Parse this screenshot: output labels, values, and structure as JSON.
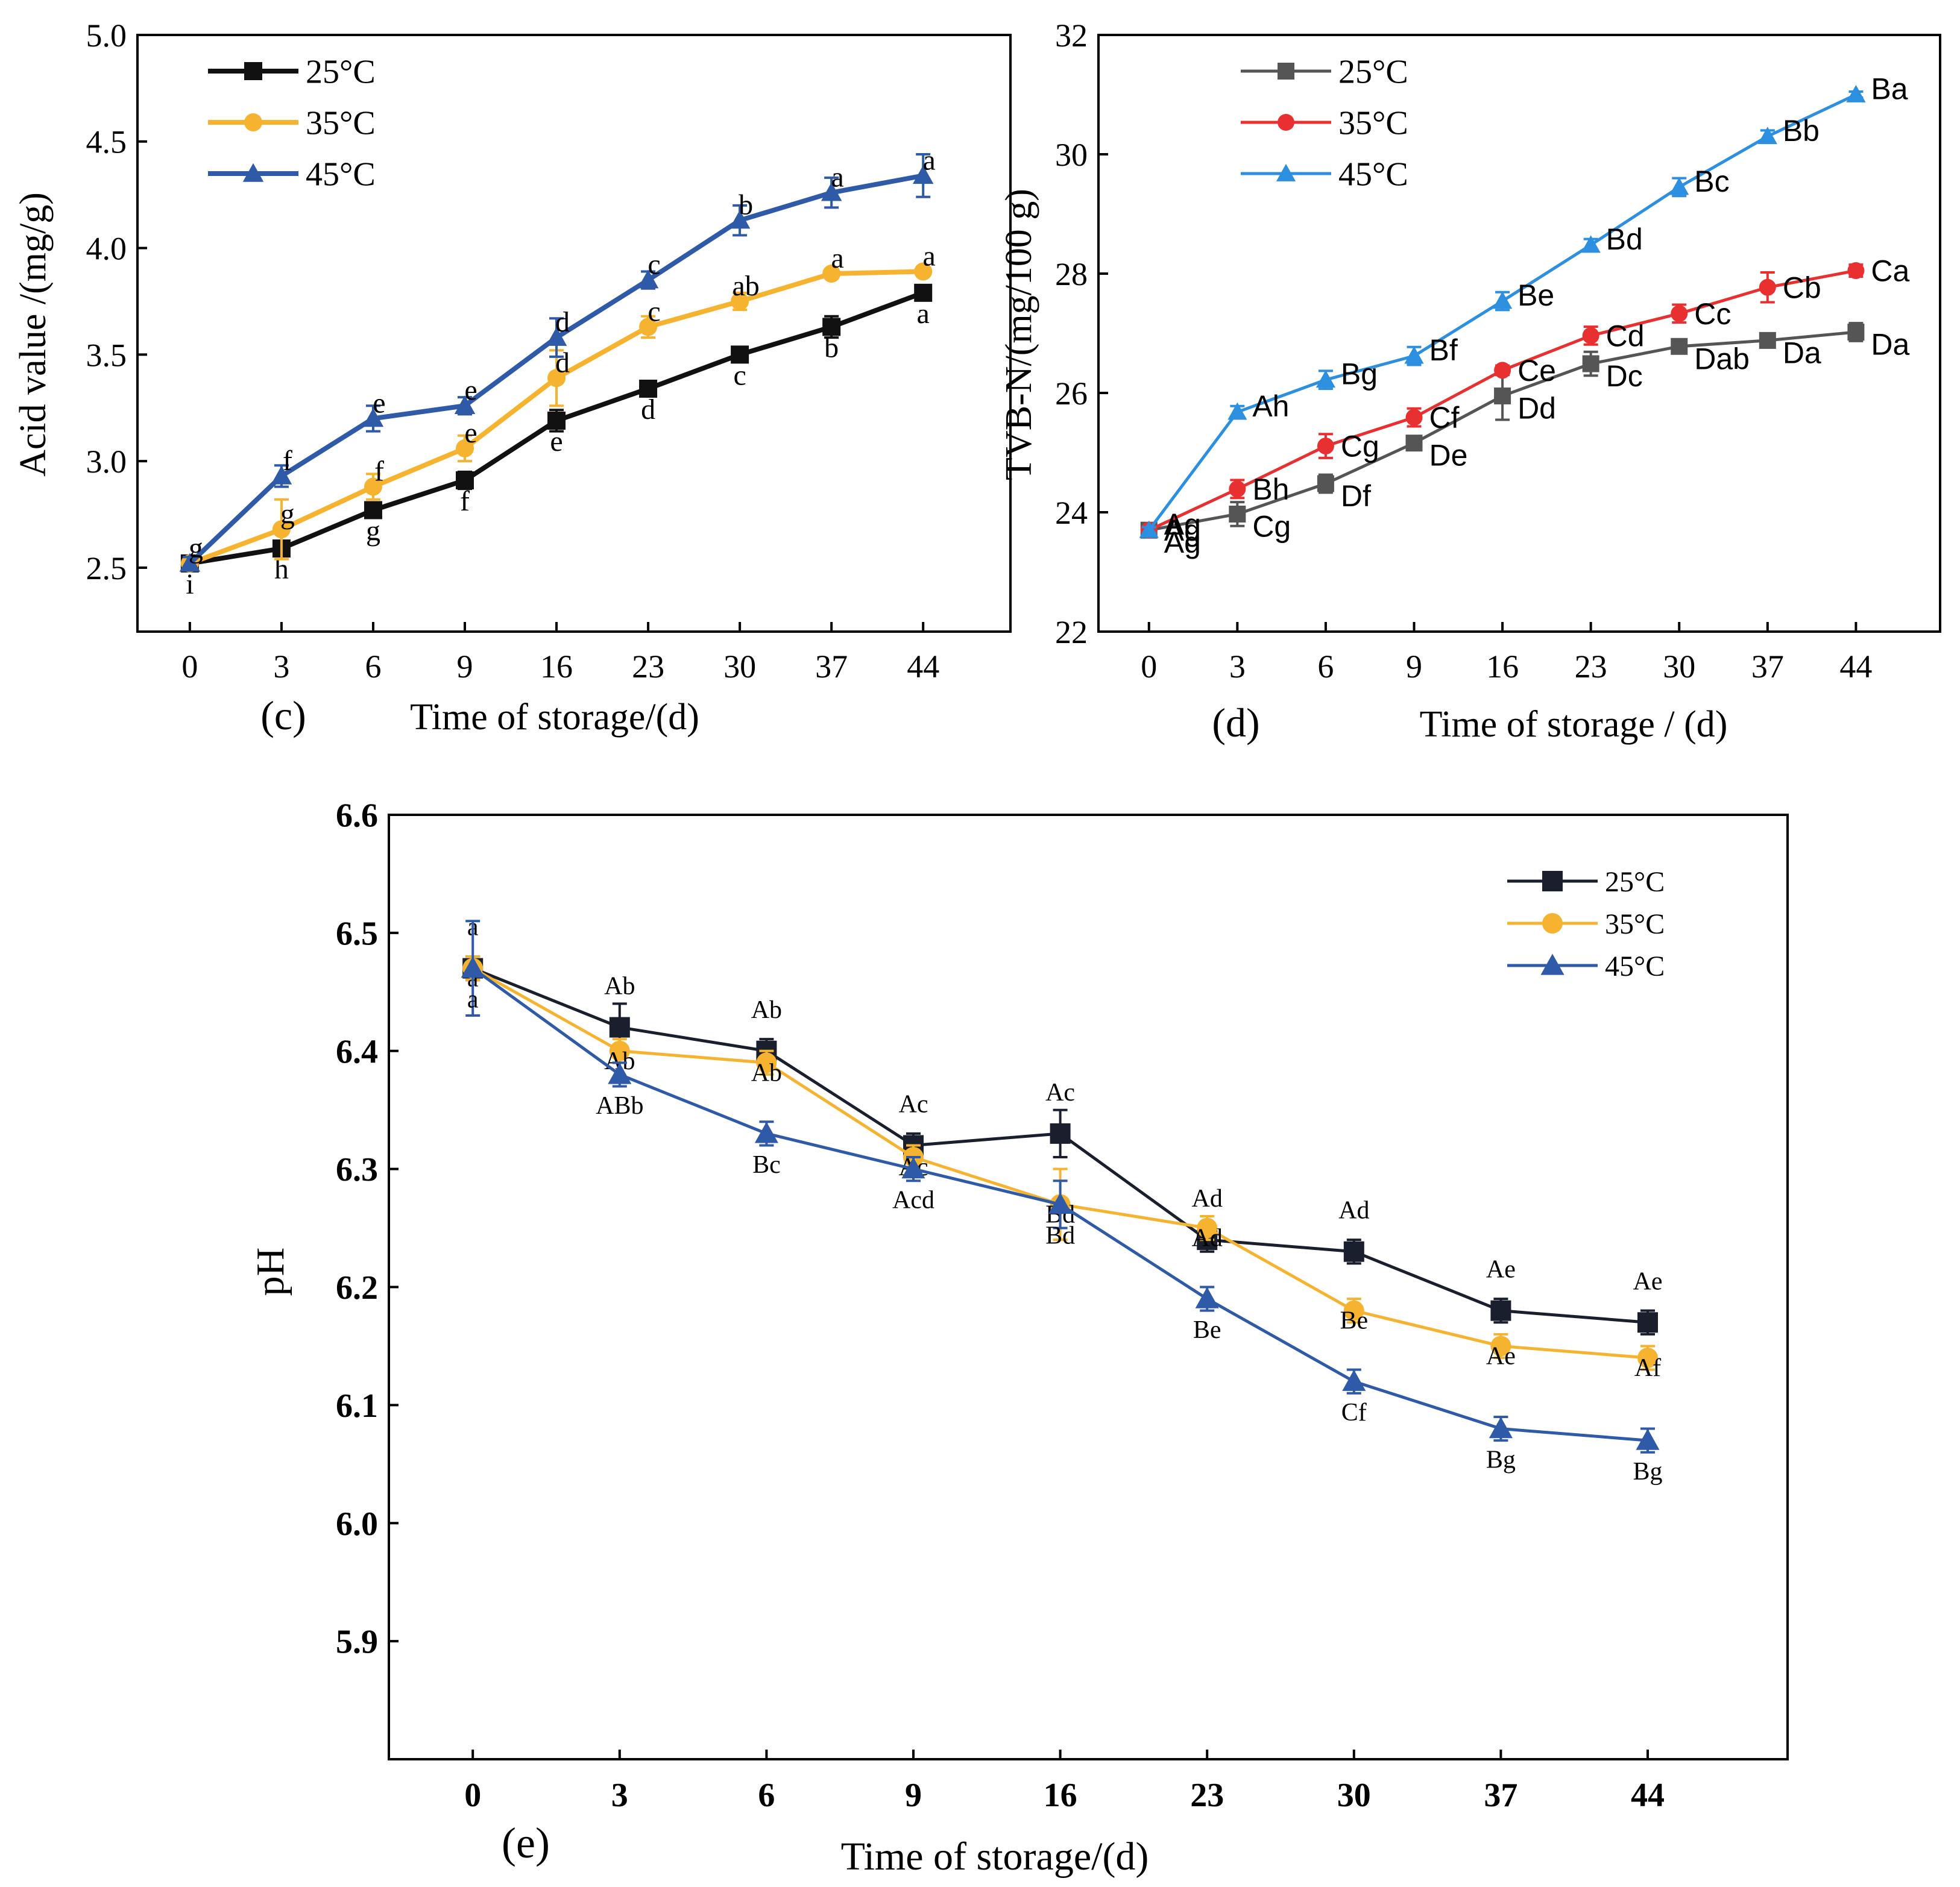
{
  "chart_data": [
    {
      "id": "c",
      "type": "line",
      "panel_label": "(c)",
      "xlabel": "Time of storage/(d)",
      "ylabel": "Acid value /(mg/g)",
      "categories": [
        "0",
        "3",
        "6",
        "9",
        "16",
        "23",
        "30",
        "37",
        "44"
      ],
      "ylim": [
        2.2,
        5.0
      ],
      "yticks": [
        "2.5",
        "3.0",
        "3.5",
        "4.0",
        "4.5",
        "5.0"
      ],
      "legend_position": "top-left",
      "series": [
        {
          "name": "25°C",
          "color": "#111111",
          "marker": "square",
          "values": [
            2.52,
            2.59,
            2.77,
            2.91,
            3.19,
            3.34,
            3.5,
            3.63,
            3.79
          ],
          "err": [
            0.02,
            0.02,
            0.02,
            0.04,
            0.05,
            0.02,
            0.02,
            0.05,
            0.02
          ],
          "labels": [
            "i",
            "h",
            "g",
            "f",
            "e",
            "d",
            "c",
            "b",
            "a"
          ]
        },
        {
          "name": "35°C",
          "color": "#f5b330",
          "marker": "diamond",
          "values": [
            2.52,
            2.68,
            2.88,
            3.06,
            3.39,
            3.63,
            3.75,
            3.88,
            3.89
          ],
          "err": [
            0.02,
            0.14,
            0.06,
            0.06,
            0.13,
            0.05,
            0.04,
            0.02,
            0.02
          ],
          "labels": [
            "g",
            "g",
            "f",
            "e",
            "d",
            "c",
            "ab",
            "a",
            "a"
          ]
        },
        {
          "name": "45°C",
          "color": "#2e5aa8",
          "marker": "triangle",
          "values": [
            2.52,
            2.93,
            3.2,
            3.26,
            3.58,
            3.85,
            4.13,
            4.26,
            4.34
          ],
          "err": [
            0.03,
            0.05,
            0.06,
            0.04,
            0.09,
            0.04,
            0.07,
            0.07,
            0.1
          ],
          "labels": [
            "g",
            "f",
            "e",
            "e",
            "d",
            "c",
            "b",
            "a",
            "a"
          ]
        }
      ]
    },
    {
      "id": "d",
      "type": "line",
      "panel_label": "(d)",
      "xlabel": "Time of storage / (d)",
      "ylabel": "TVB-N/(mg/100 g)",
      "categories": [
        "0",
        "3",
        "6",
        "9",
        "16",
        "23",
        "30",
        "37",
        "44"
      ],
      "ylim": [
        22,
        32
      ],
      "yticks": [
        "22",
        "24",
        "26",
        "28",
        "30",
        "32"
      ],
      "legend_position": "top-left",
      "series": [
        {
          "name": "25°C",
          "color": "#555555",
          "marker": "square",
          "values": [
            23.7,
            23.97,
            24.48,
            25.16,
            25.95,
            26.49,
            26.78,
            26.88,
            27.02
          ],
          "err": [
            0.05,
            0.2,
            0.15,
            0.08,
            0.4,
            0.2,
            0.08,
            0.06,
            0.15
          ],
          "labels": [
            "Ag",
            "Cg",
            "Df",
            "De",
            "Dd",
            "Dc",
            "Dab",
            "Da",
            "Da"
          ]
        },
        {
          "name": "35°C",
          "color": "#e83030",
          "marker": "circle",
          "values": [
            23.7,
            24.39,
            25.11,
            25.59,
            26.38,
            26.96,
            27.33,
            27.77,
            28.05
          ],
          "err": [
            0.05,
            0.15,
            0.2,
            0.15,
            0.08,
            0.15,
            0.15,
            0.25,
            0.1
          ],
          "labels": [
            "Ag",
            "Bh",
            "Cg",
            "Cf",
            "Ce",
            "Cd",
            "Cc",
            "Cb",
            "Ca"
          ]
        },
        {
          "name": "45°C",
          "color": "#2c8fe0",
          "marker": "triangle",
          "values": [
            23.7,
            25.68,
            26.22,
            26.62,
            27.54,
            28.48,
            29.45,
            30.3,
            31.0
          ],
          "err": [
            0.05,
            0.1,
            0.15,
            0.15,
            0.15,
            0.1,
            0.15,
            0.1,
            0.05
          ],
          "labels": [
            "Ag",
            "Ah",
            "Bg",
            "Bf",
            "Be",
            "Bd",
            "Bc",
            "Bb",
            "Ba"
          ]
        }
      ]
    },
    {
      "id": "e",
      "type": "line",
      "panel_label": "(e)",
      "xlabel": "Time of storage/(d)",
      "ylabel": "pH",
      "categories": [
        "0",
        "3",
        "6",
        "9",
        "16",
        "23",
        "30",
        "37",
        "44"
      ],
      "ylim": [
        5.8,
        6.6
      ],
      "yticks": [
        "5.9",
        "6.0",
        "6.1",
        "6.2",
        "6.3",
        "6.4",
        "6.5",
        "6.6"
      ],
      "legend_position": "top-right",
      "series": [
        {
          "name": "25°C",
          "color": "#1a1f2e",
          "marker": "square",
          "values": [
            6.47,
            6.42,
            6.4,
            6.32,
            6.33,
            6.24,
            6.23,
            6.18,
            6.17
          ],
          "err": [
            0.01,
            0.02,
            0.01,
            0.01,
            0.02,
            0.01,
            0.01,
            0.01,
            0.01
          ],
          "labels": [
            "a",
            "Ab",
            "Ab",
            "Ac",
            "Ac",
            "Ad",
            "Ad",
            "Ae",
            "Ae"
          ]
        },
        {
          "name": "35°C",
          "color": "#f5b330",
          "marker": "circle",
          "values": [
            6.47,
            6.4,
            6.39,
            6.31,
            6.27,
            6.25,
            6.18,
            6.15,
            6.14
          ],
          "err": [
            0.01,
            0.01,
            0.01,
            0.01,
            0.03,
            0.01,
            0.01,
            0.01,
            0.01
          ],
          "labels": [
            "a",
            "Ab",
            "Ab",
            "Ac",
            "Bd",
            "Ad",
            "Be",
            "Ae",
            "Af"
          ]
        },
        {
          "name": "45°C",
          "color": "#2e5aa8",
          "marker": "triangle",
          "values": [
            6.47,
            6.38,
            6.33,
            6.3,
            6.27,
            6.19,
            6.12,
            6.08,
            6.07
          ],
          "err": [
            0.04,
            0.01,
            0.01,
            0.01,
            0.02,
            0.01,
            0.01,
            0.01,
            0.01
          ],
          "labels": [
            "a",
            "ABb",
            "Bc",
            "Acd",
            "Bd",
            "Be",
            "Cf",
            "Bg",
            "Bg"
          ]
        }
      ]
    }
  ]
}
